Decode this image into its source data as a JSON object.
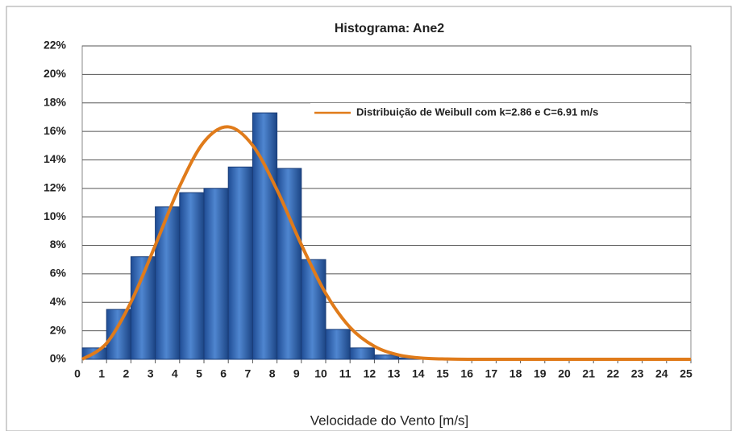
{
  "chart_data": {
    "type": "histogram",
    "title": "Histograma: Ane2",
    "x_label": "Velocidade do Vento [m/s]",
    "bins": [
      0,
      1,
      2,
      3,
      4,
      5,
      6,
      7,
      8,
      9,
      10,
      11,
      12,
      13,
      14,
      15,
      16,
      17,
      18,
      19,
      20,
      21,
      22,
      23,
      24,
      25
    ],
    "values": [
      0.8,
      3.5,
      7.2,
      10.7,
      11.7,
      12.0,
      13.5,
      17.3,
      13.4,
      7.0,
      2.1,
      0.8,
      0.3,
      0.1,
      0,
      0,
      0,
      0,
      0,
      0,
      0,
      0,
      0,
      0,
      0
    ],
    "color": "#3b6db5",
    "line": {
      "name": "Distribuição de Weibull com k=2.86 e C=6.91 m/s",
      "color": "#e07b1a",
      "x": [
        0,
        1,
        2,
        3,
        4,
        5,
        6,
        7,
        8,
        9,
        10,
        11,
        12,
        13,
        14,
        15,
        16,
        17,
        18,
        19,
        20,
        21,
        22,
        23,
        24,
        25
      ],
      "values": [
        0,
        1.13,
        4.01,
        8.0,
        12.14,
        15.26,
        16.32,
        15.02,
        11.89,
        8.05,
        4.63,
        2.24,
        0.91,
        0.3,
        0.08,
        0.02,
        0,
        0,
        0,
        0,
        0,
        0,
        0,
        0,
        0,
        0
      ]
    },
    "xlim": [
      0,
      25
    ],
    "xticks": [
      0,
      1,
      2,
      3,
      4,
      5,
      6,
      7,
      8,
      9,
      10,
      11,
      12,
      13,
      14,
      15,
      16,
      17,
      18,
      19,
      20,
      21,
      22,
      23,
      24,
      25
    ],
    "ylim": [
      0,
      22
    ],
    "yticks": [
      {
        "value": 0,
        "label": "0%"
      },
      {
        "value": 2,
        "label": "2%"
      },
      {
        "value": 4,
        "label": "4%"
      },
      {
        "value": 6,
        "label": "6%"
      },
      {
        "value": 8,
        "label": "8%"
      },
      {
        "value": 10,
        "label": "10%"
      },
      {
        "value": 12,
        "label": "12%"
      },
      {
        "value": 14,
        "label": "14%"
      },
      {
        "value": 16,
        "label": "16%"
      },
      {
        "value": 18,
        "label": "18%"
      },
      {
        "value": 20,
        "label": "20%"
      },
      {
        "value": 22,
        "label": "22%"
      }
    ],
    "grid": true,
    "legend": "upper right"
  }
}
